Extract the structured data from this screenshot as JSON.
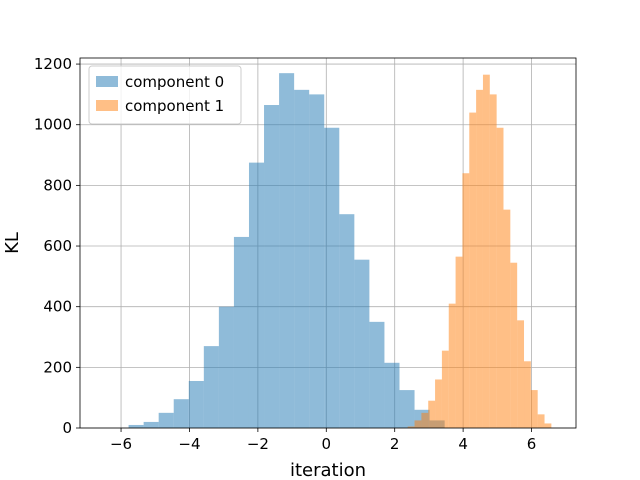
{
  "chart_data": {
    "type": "histogram",
    "xlabel": "iteration",
    "ylabel": "KL",
    "xlim": [
      -7.2,
      7.3
    ],
    "ylim": [
      0,
      1220
    ],
    "xticks": [
      -6,
      -4,
      -2,
      0,
      2,
      4,
      6
    ],
    "xtick_labels": [
      "−6",
      "−4",
      "−2",
      "0",
      "2",
      "4",
      "6"
    ],
    "yticks": [
      0,
      200,
      400,
      600,
      800,
      1000,
      1200
    ],
    "ytick_labels": [
      "0",
      "200",
      "400",
      "600",
      "800",
      "1000",
      "1200"
    ],
    "grid": true,
    "legend_position": "top-left",
    "series": [
      {
        "name": "component 0",
        "color": "#1f77b4",
        "alpha": 0.5,
        "bin_edges": [
          -5.78,
          -5.34,
          -4.9,
          -4.46,
          -4.02,
          -3.58,
          -3.14,
          -2.7,
          -2.26,
          -1.82,
          -1.38,
          -0.94,
          -0.5,
          -0.06,
          0.38,
          0.82,
          1.26,
          1.7,
          2.14,
          2.58,
          3.02,
          3.46
        ],
        "counts": [
          10,
          20,
          50,
          95,
          155,
          270,
          400,
          630,
          875,
          1065,
          1170,
          1115,
          1100,
          990,
          705,
          555,
          350,
          215,
          125,
          60,
          25
        ]
      },
      {
        "name": "component 1",
        "color": "#ff7f0e",
        "alpha": 0.5,
        "bin_edges": [
          2.38,
          2.58,
          2.78,
          2.98,
          3.18,
          3.38,
          3.58,
          3.78,
          3.98,
          4.18,
          4.38,
          4.58,
          4.78,
          4.98,
          5.18,
          5.38,
          5.58,
          5.78,
          5.98,
          6.18,
          6.38,
          6.58
        ],
        "counts": [
          5,
          25,
          50,
          90,
          160,
          255,
          410,
          565,
          840,
          1040,
          1115,
          1165,
          1100,
          990,
          720,
          545,
          355,
          220,
          125,
          45,
          15
        ]
      }
    ]
  }
}
